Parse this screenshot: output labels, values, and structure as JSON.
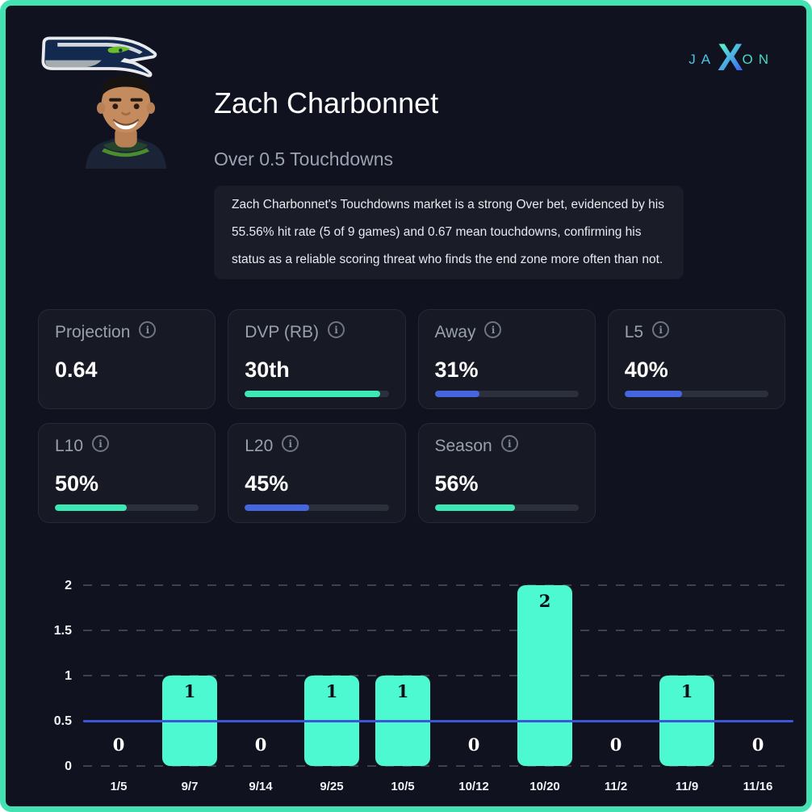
{
  "header": {
    "player_name": "Zach Charbonnet",
    "market_title": "Over 0.5 Touchdowns",
    "description": "Zach Charbonnet's Touchdowns market is a strong Over bet, evidenced by his 55.56% hit rate (5 of 9 games) and 0.67 mean touchdowns, confirming his status as a reliable scoring threat who finds the end zone more often than not.",
    "team_logo": "seattle-seahawks-logo",
    "avatar": "zach-charbonnet-headshot"
  },
  "brand": {
    "left": "JA",
    "x": "X",
    "right": "ON"
  },
  "info_icon_glyph": "i",
  "colors": {
    "teal": "#3ce9b4",
    "blue": "#4666e0",
    "frame_border": "#42e2b3",
    "background": "#10131f",
    "card_background": "#171a24"
  },
  "stats": [
    {
      "label": "Projection",
      "value": "0.64",
      "bar": null
    },
    {
      "label": "DVP (RB)",
      "value": "30th",
      "bar": {
        "pct": 94,
        "color": "teal"
      }
    },
    {
      "label": "Away",
      "value": "31%",
      "bar": {
        "pct": 31,
        "color": "blue"
      }
    },
    {
      "label": "L5",
      "value": "40%",
      "bar": {
        "pct": 40,
        "color": "blue"
      }
    },
    {
      "label": "L10",
      "value": "50%",
      "bar": {
        "pct": 50,
        "color": "teal"
      }
    },
    {
      "label": "L20",
      "value": "45%",
      "bar": {
        "pct": 45,
        "color": "blue"
      }
    },
    {
      "label": "Season",
      "value": "56%",
      "bar": {
        "pct": 56,
        "color": "teal"
      }
    }
  ],
  "chart_data": {
    "type": "bar",
    "title": "",
    "xlabel": "",
    "ylabel": "",
    "categories": [
      "1/5",
      "9/7",
      "9/14",
      "9/25",
      "10/5",
      "10/12",
      "10/20",
      "11/2",
      "11/9",
      "11/16"
    ],
    "values": [
      0,
      1,
      0,
      1,
      1,
      0,
      2,
      0,
      1,
      0
    ],
    "yticks": [
      0,
      0.5,
      1,
      1.5,
      2
    ],
    "ylim": [
      0,
      2.16
    ],
    "threshold_line": 0.5,
    "bar_color": "#4cf9d0",
    "line_color": "#3b57d8",
    "grid": "dashed horizontal",
    "legend": "none"
  }
}
